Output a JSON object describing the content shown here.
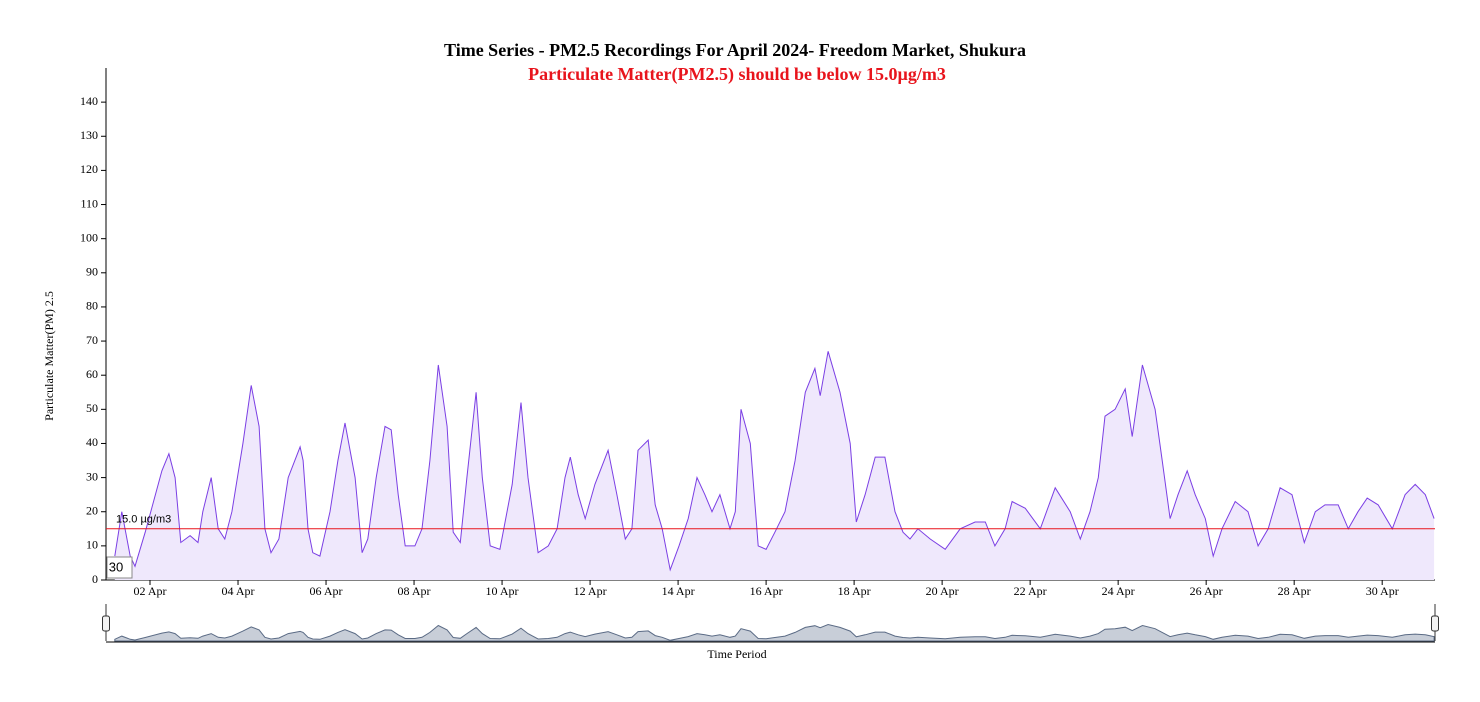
{
  "chart_data": {
    "type": "area",
    "title": "Time Series - PM2.5 Recordings For April 2024- Freedom Market, Shukura",
    "subtitle": "Particulate Matter(PM2.5) should be below 15.0µg/m3",
    "y_label": "Particulate Matter(PM) 2.5",
    "x_label": "Time Period",
    "annotation": "30",
    "threshold": {
      "value": 15,
      "label": "15.0 µg/m3",
      "color": "#e8141c"
    },
    "color": "#7b3fe4",
    "fill": "#efe8fc",
    "navigator_color": "#9aa6b8",
    "xlim": [
      1,
      31.2
    ],
    "ylim": [
      0,
      150
    ],
    "yticks": [
      0,
      10,
      20,
      30,
      40,
      50,
      60,
      70,
      80,
      90,
      100,
      110,
      120,
      130,
      140
    ],
    "xticks": [
      {
        "value": 2,
        "label": "02 Apr"
      },
      {
        "value": 4,
        "label": "04 Apr"
      },
      {
        "value": 6,
        "label": "06 Apr"
      },
      {
        "value": 8,
        "label": "08 Apr"
      },
      {
        "value": 10,
        "label": "10 Apr"
      },
      {
        "value": 12,
        "label": "12 Apr"
      },
      {
        "value": 14,
        "label": "14 Apr"
      },
      {
        "value": 16,
        "label": "16 Apr"
      },
      {
        "value": 18,
        "label": "18 Apr"
      },
      {
        "value": 20,
        "label": "20 Apr"
      },
      {
        "value": 22,
        "label": "22 Apr"
      },
      {
        "value": 24,
        "label": "24 Apr"
      },
      {
        "value": 26,
        "label": "26 Apr"
      },
      {
        "value": 28,
        "label": "28 Apr"
      },
      {
        "value": 30,
        "label": "30 Apr"
      }
    ],
    "x": [
      1.2,
      1.36,
      1.55,
      1.66,
      1.89,
      2.27,
      2.43,
      2.57,
      2.7,
      2.91,
      3.09,
      3.2,
      3.39,
      3.55,
      3.7,
      3.86,
      4.11,
      4.3,
      4.48,
      4.61,
      4.75,
      4.93,
      5.14,
      5.41,
      5.48,
      5.59,
      5.7,
      5.86,
      6.09,
      6.27,
      6.43,
      6.66,
      6.82,
      6.95,
      7.14,
      7.34,
      7.48,
      7.64,
      7.8,
      8.02,
      8.18,
      8.36,
      8.55,
      8.75,
      8.89,
      9.05,
      9.2,
      9.41,
      9.55,
      9.73,
      9.95,
      10.23,
      10.43,
      10.59,
      10.82,
      11.05,
      11.25,
      11.43,
      11.55,
      11.73,
      11.89,
      12.11,
      12.41,
      12.61,
      12.8,
      12.95,
      13.09,
      13.32,
      13.48,
      13.64,
      13.82,
      14.02,
      14.23,
      14.43,
      14.61,
      14.77,
      14.95,
      15.18,
      15.3,
      15.43,
      15.64,
      15.82,
      16.0,
      16.2,
      16.43,
      16.66,
      16.89,
      17.11,
      17.23,
      17.41,
      17.68,
      17.91,
      18.05,
      18.25,
      18.48,
      18.7,
      18.93,
      19.11,
      19.27,
      19.45,
      19.73,
      20.07,
      20.41,
      20.75,
      20.98,
      21.2,
      21.43,
      21.59,
      21.89,
      22.23,
      22.57,
      22.91,
      23.14,
      23.36,
      23.55,
      23.7,
      23.93,
      24.16,
      24.32,
      24.55,
      24.84,
      25.0,
      25.18,
      25.36,
      25.57,
      25.75,
      25.98,
      26.16,
      26.36,
      26.66,
      26.95,
      27.18,
      27.41,
      27.68,
      27.95,
      28.23,
      28.48,
      28.7,
      29.0,
      29.23,
      29.45,
      29.66,
      29.91,
      30.23,
      30.52,
      30.75,
      30.98,
      31.18
    ],
    "values": [
      7,
      20,
      7,
      4,
      14,
      32,
      37,
      30,
      11,
      13,
      11,
      20,
      30,
      15,
      12,
      20,
      40,
      57,
      45,
      15,
      8,
      12,
      30,
      39,
      35,
      15,
      8,
      7,
      20,
      35,
      46,
      30,
      8,
      12,
      30,
      45,
      44,
      25,
      10,
      10,
      15,
      35,
      63,
      45,
      14,
      11,
      30,
      55,
      30,
      10,
      9,
      28,
      52,
      30,
      8,
      10,
      15,
      30,
      36,
      25,
      18,
      28,
      38,
      25,
      12,
      15,
      38,
      41,
      22,
      15,
      3,
      10,
      18,
      30,
      25,
      20,
      25,
      15,
      20,
      50,
      40,
      10,
      9,
      14,
      20,
      35,
      55,
      62,
      54,
      67,
      55,
      40,
      17,
      25,
      36,
      36,
      20,
      14,
      12,
      15,
      12,
      9,
      15,
      17,
      17,
      10,
      15,
      23,
      21,
      15,
      27,
      20,
      12,
      20,
      30,
      48,
      50,
      56,
      42,
      63,
      50,
      35,
      18,
      25,
      32,
      25,
      18,
      7,
      15,
      23,
      20,
      10,
      15,
      27,
      25,
      11,
      20,
      22,
      22,
      15,
      20,
      24,
      22,
      15,
      25,
      28,
      25,
      18
    ]
  }
}
